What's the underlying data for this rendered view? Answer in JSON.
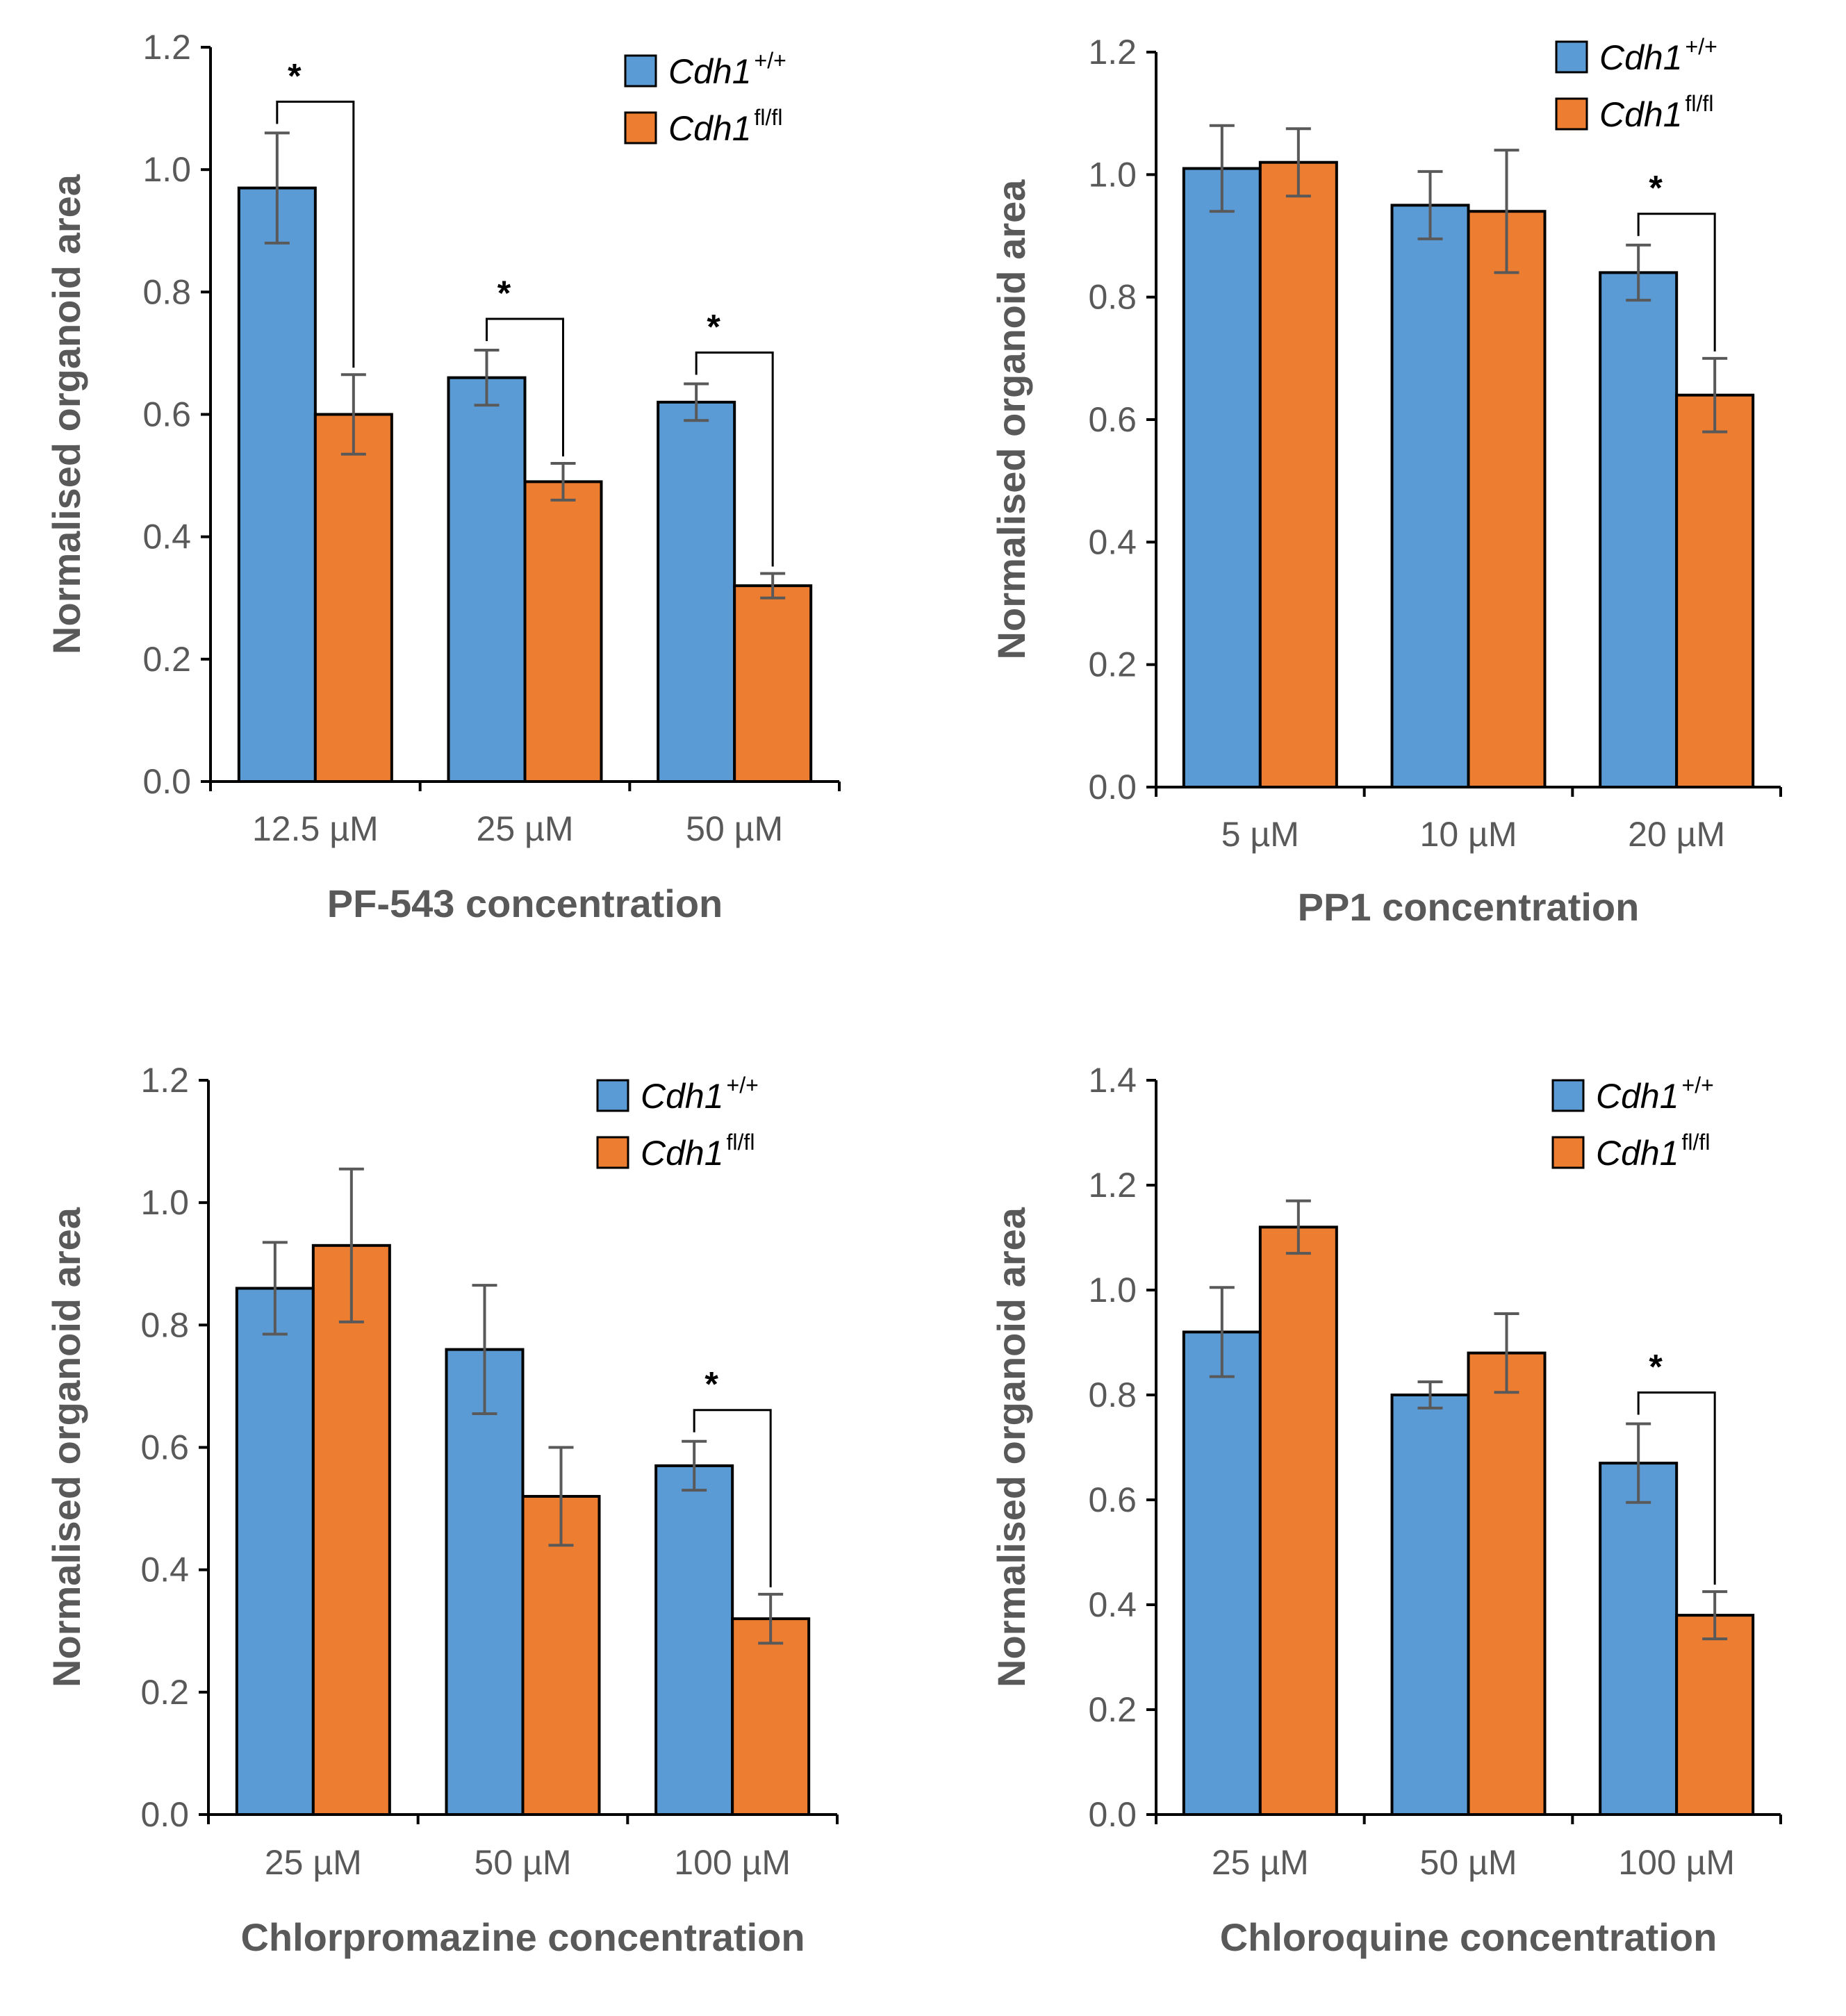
{
  "colors": {
    "series_wt": "#5B9BD5",
    "series_fl": "#ED7D31",
    "axis": "#000000",
    "error_bar": "#595959",
    "text": "#595959"
  },
  "chart_data": [
    {
      "type": "bar",
      "title": "",
      "xlabel": "PF-543 concentration",
      "ylabel": "Normalised organoid area",
      "ylim": [
        0,
        1.2
      ],
      "ytick_step": 0.2,
      "yticks": [
        "0.0",
        "0.2",
        "0.4",
        "0.6",
        "0.8",
        "1.0",
        "1.2"
      ],
      "categories": [
        "12.5 µM",
        "25 µM",
        "50 µM"
      ],
      "legend_position": "top-right",
      "series": [
        {
          "name": "Cdh1",
          "sup": "+/+",
          "values": [
            0.97,
            0.66,
            0.62
          ],
          "errors": [
            0.09,
            0.045,
            0.03
          ]
        },
        {
          "name": "Cdh1",
          "sup": "fl/fl",
          "values": [
            0.6,
            0.49,
            0.32
          ],
          "errors": [
            0.065,
            0.03,
            0.02
          ]
        }
      ],
      "significance": [
        {
          "category": 0,
          "label": "*"
        },
        {
          "category": 1,
          "label": "*"
        },
        {
          "category": 2,
          "label": "*"
        }
      ]
    },
    {
      "type": "bar",
      "title": "",
      "xlabel": "PP1 concentration",
      "ylabel": "Normalised organoid area",
      "ylim": [
        0,
        1.2
      ],
      "ytick_step": 0.2,
      "yticks": [
        "0.0",
        "0.2",
        "0.4",
        "0.6",
        "0.8",
        "1.0",
        "1.2"
      ],
      "categories": [
        "5 µM",
        "10 µM",
        "20 µM"
      ],
      "legend_position": "top-right",
      "series": [
        {
          "name": "Cdh1",
          "sup": "+/+",
          "values": [
            1.01,
            0.95,
            0.84
          ],
          "errors": [
            0.07,
            0.055,
            0.045
          ]
        },
        {
          "name": "Cdh1",
          "sup": "fl/fl",
          "values": [
            1.02,
            0.94,
            0.64
          ],
          "errors": [
            0.055,
            0.1,
            0.06
          ]
        }
      ],
      "significance": [
        {
          "category": 2,
          "label": "*"
        }
      ]
    },
    {
      "type": "bar",
      "title": "",
      "xlabel": "Chlorpromazine concentration",
      "ylabel": "Normalised organoid area",
      "ylim": [
        0,
        1.2
      ],
      "ytick_step": 0.2,
      "yticks": [
        "0.0",
        "0.2",
        "0.4",
        "0.6",
        "0.8",
        "1.0",
        "1.2"
      ],
      "categories": [
        "25 µM",
        "50 µM",
        "100 µM"
      ],
      "legend_position": "top-right",
      "series": [
        {
          "name": "Cdh1",
          "sup": "+/+",
          "values": [
            0.86,
            0.76,
            0.57
          ],
          "errors": [
            0.075,
            0.105,
            0.04
          ]
        },
        {
          "name": "Cdh1",
          "sup": "fl/fl",
          "values": [
            0.93,
            0.52,
            0.32
          ],
          "errors": [
            0.125,
            0.08,
            0.04
          ]
        }
      ],
      "significance": [
        {
          "category": 2,
          "label": "*"
        }
      ]
    },
    {
      "type": "bar",
      "title": "",
      "xlabel": "Chloroquine concentration",
      "ylabel": "Normalised organoid area",
      "ylim": [
        0,
        1.4
      ],
      "ytick_step": 0.2,
      "yticks": [
        "0.0",
        "0.2",
        "0.4",
        "0.6",
        "0.8",
        "1.0",
        "1.2",
        "1.4"
      ],
      "categories": [
        "25 µM",
        "50 µM",
        "100 µM"
      ],
      "legend_position": "top-right",
      "series": [
        {
          "name": "Cdh1",
          "sup": "+/+",
          "values": [
            0.92,
            0.8,
            0.67
          ],
          "errors": [
            0.085,
            0.025,
            0.075
          ]
        },
        {
          "name": "Cdh1",
          "sup": "fl/fl",
          "values": [
            1.12,
            0.88,
            0.38
          ],
          "errors": [
            0.05,
            0.075,
            0.045
          ]
        }
      ],
      "significance": [
        {
          "category": 2,
          "label": "*"
        }
      ]
    }
  ]
}
